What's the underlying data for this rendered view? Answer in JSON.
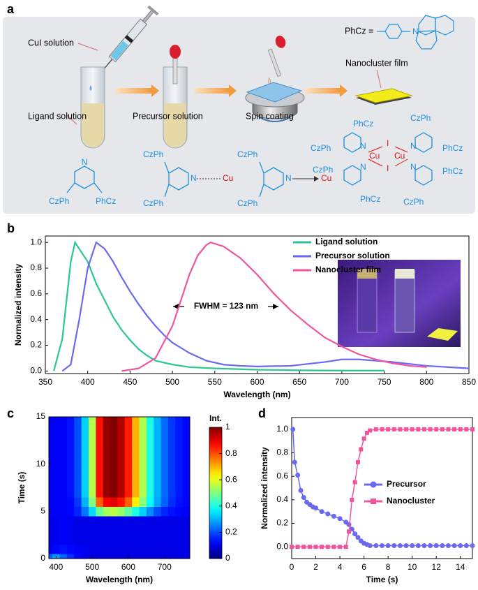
{
  "panel_a": {
    "label": "a",
    "captions": [
      "CuI solution",
      "Ligand solution",
      "Precursor solution",
      "Spin coating",
      "Nanocluster film"
    ],
    "phcz_label": "PhCz =",
    "phcz_n": "N",
    "ligand": [
      "N",
      "CzPh",
      "PhCz"
    ],
    "precursor": [
      "CzPh",
      "N",
      "Cu",
      "CzPh"
    ],
    "complex": [
      "CzPh",
      "N",
      "Cu",
      "CzPh"
    ],
    "cluster": [
      "PhCz",
      "CzPh",
      "N",
      "Cu",
      "I",
      "I",
      "Cu",
      "N",
      "CzPh",
      "PhCz",
      "CzPh",
      "N",
      "N",
      "PhCz",
      "PhCz",
      "CzPh"
    ]
  },
  "chart_data": [
    {
      "type": "line",
      "label": "b",
      "xlabel": "Wavelength (nm)",
      "ylabel": "Normalized intensity",
      "xlim": [
        350,
        850
      ],
      "xticks": [
        350,
        400,
        450,
        500,
        550,
        600,
        650,
        700,
        750,
        800,
        850
      ],
      "ylim": [
        -0.02,
        1.05
      ],
      "yticks": [
        {
          "value": 0,
          "label": "0.0"
        },
        {
          "value": 0.2,
          "label": "0.2"
        },
        {
          "value": 0.4,
          "label": "0.4"
        },
        {
          "value": 0.6,
          "label": "0.6"
        },
        {
          "value": 0.8,
          "label": "0.8"
        },
        {
          "value": 1,
          "label": "1.0"
        }
      ],
      "annotation": "FWHM = 123 nm",
      "legend": "upper right",
      "series": [
        {
          "name": "Ligand solution",
          "color": "#2ac78f",
          "x": [
            360,
            370,
            380,
            385,
            390,
            400,
            410,
            420,
            430,
            440,
            450,
            460,
            470,
            480,
            500,
            520,
            550,
            600,
            650,
            700,
            750
          ],
          "values": [
            0,
            0.25,
            0.85,
            1.0,
            0.95,
            0.85,
            0.68,
            0.55,
            0.42,
            0.32,
            0.24,
            0.17,
            0.12,
            0.08,
            0.05,
            0.03,
            0.02,
            0.01,
            0.005,
            0.003,
            0.003
          ]
        },
        {
          "name": "Precursor solution",
          "color": "#6a6af0",
          "x": [
            370,
            380,
            390,
            400,
            410,
            420,
            430,
            440,
            450,
            460,
            470,
            480,
            490,
            500,
            520,
            540,
            560,
            580,
            600,
            640,
            680,
            700,
            720,
            760,
            800,
            850
          ],
          "values": [
            0,
            0.05,
            0.4,
            0.8,
            1.0,
            0.95,
            0.85,
            0.73,
            0.62,
            0.52,
            0.43,
            0.35,
            0.28,
            0.22,
            0.14,
            0.08,
            0.05,
            0.04,
            0.035,
            0.04,
            0.07,
            0.09,
            0.09,
            0.07,
            0.04,
            0.02
          ]
        },
        {
          "name": "Nanocluster film",
          "color": "#f0559c",
          "x": [
            440,
            460,
            480,
            500,
            510,
            520,
            530,
            540,
            545,
            560,
            580,
            600,
            620,
            640,
            660,
            680,
            700,
            720,
            740,
            760,
            780,
            800
          ],
          "values": [
            0,
            0.02,
            0.1,
            0.35,
            0.55,
            0.75,
            0.9,
            0.98,
            1.0,
            0.97,
            0.88,
            0.75,
            0.6,
            0.47,
            0.36,
            0.26,
            0.19,
            0.13,
            0.09,
            0.06,
            0.04,
            0.03
          ]
        }
      ]
    },
    {
      "type": "heatmap",
      "label": "c",
      "xlabel": "Wavelength (nm)",
      "ylabel": "Time (s)",
      "xlim": [
        380,
        770
      ],
      "xticks": [
        400,
        500,
        600,
        700
      ],
      "ylim": [
        0,
        15
      ],
      "yticks": [
        0,
        5,
        10,
        15
      ],
      "colormap": "jet",
      "colorbar": {
        "title": "Int.",
        "lim": [
          0,
          1
        ],
        "ticks": [
          0,
          0.2,
          0.4,
          0.6,
          0.8,
          1
        ]
      },
      "x": [
        380,
        400,
        420,
        440,
        460,
        480,
        500,
        520,
        540,
        560,
        580,
        600,
        620,
        640,
        660,
        680,
        700,
        720,
        740,
        760
      ],
      "y": [
        0,
        1,
        2,
        3,
        4,
        5,
        6,
        7,
        8,
        9,
        10,
        11,
        12,
        13,
        14,
        15
      ],
      "z": [
        [
          0.22,
          0.28,
          0.22,
          0.17,
          0.13,
          0.11,
          0.1,
          0.1,
          0.1,
          0.1,
          0.1,
          0.1,
          0.1,
          0.1,
          0.1,
          0.1,
          0.1,
          0.1,
          0.1,
          0.1
        ],
        [
          0.11,
          0.13,
          0.14,
          0.13,
          0.12,
          0.11,
          0.1,
          0.1,
          0.1,
          0.1,
          0.1,
          0.1,
          0.1,
          0.1,
          0.1,
          0.1,
          0.1,
          0.1,
          0.1,
          0.1
        ],
        [
          0.1,
          0.11,
          0.12,
          0.11,
          0.1,
          0.1,
          0.1,
          0.1,
          0.1,
          0.1,
          0.1,
          0.1,
          0.1,
          0.1,
          0.1,
          0.1,
          0.1,
          0.1,
          0.1,
          0.1
        ],
        [
          0.1,
          0.11,
          0.12,
          0.11,
          0.1,
          0.1,
          0.1,
          0.1,
          0.1,
          0.1,
          0.1,
          0.1,
          0.1,
          0.1,
          0.1,
          0.1,
          0.1,
          0.1,
          0.1,
          0.1
        ],
        [
          0.1,
          0.11,
          0.12,
          0.11,
          0.1,
          0.1,
          0.1,
          0.1,
          0.1,
          0.1,
          0.1,
          0.1,
          0.1,
          0.1,
          0.1,
          0.1,
          0.1,
          0.1,
          0.1,
          0.1
        ],
        [
          0.12,
          0.12,
          0.12,
          0.13,
          0.16,
          0.24,
          0.34,
          0.48,
          0.54,
          0.56,
          0.52,
          0.47,
          0.4,
          0.33,
          0.26,
          0.2,
          0.16,
          0.14,
          0.13,
          0.12
        ],
        [
          0.12,
          0.12,
          0.12,
          0.13,
          0.18,
          0.3,
          0.5,
          0.78,
          0.88,
          0.9,
          0.86,
          0.78,
          0.64,
          0.51,
          0.38,
          0.29,
          0.22,
          0.17,
          0.14,
          0.13
        ],
        [
          0.12,
          0.12,
          0.12,
          0.14,
          0.2,
          0.33,
          0.55,
          0.86,
          0.98,
          1.0,
          0.95,
          0.85,
          0.7,
          0.55,
          0.4,
          0.3,
          0.23,
          0.18,
          0.15,
          0.13
        ],
        [
          0.12,
          0.12,
          0.12,
          0.14,
          0.2,
          0.33,
          0.55,
          0.86,
          0.98,
          1.0,
          0.95,
          0.85,
          0.7,
          0.55,
          0.4,
          0.3,
          0.23,
          0.18,
          0.15,
          0.13
        ],
        [
          0.12,
          0.12,
          0.12,
          0.14,
          0.2,
          0.33,
          0.55,
          0.86,
          0.98,
          1.0,
          0.95,
          0.85,
          0.7,
          0.55,
          0.4,
          0.3,
          0.23,
          0.18,
          0.15,
          0.13
        ],
        [
          0.12,
          0.12,
          0.12,
          0.14,
          0.2,
          0.33,
          0.55,
          0.86,
          0.98,
          1.0,
          0.95,
          0.85,
          0.7,
          0.55,
          0.4,
          0.3,
          0.23,
          0.18,
          0.15,
          0.13
        ],
        [
          0.12,
          0.12,
          0.12,
          0.14,
          0.2,
          0.33,
          0.55,
          0.86,
          0.98,
          1.0,
          0.95,
          0.85,
          0.7,
          0.55,
          0.4,
          0.3,
          0.23,
          0.18,
          0.15,
          0.13
        ],
        [
          0.12,
          0.12,
          0.12,
          0.14,
          0.2,
          0.33,
          0.55,
          0.86,
          0.98,
          1.0,
          0.95,
          0.85,
          0.7,
          0.55,
          0.4,
          0.3,
          0.23,
          0.18,
          0.15,
          0.13
        ],
        [
          0.12,
          0.12,
          0.12,
          0.14,
          0.2,
          0.33,
          0.55,
          0.86,
          0.98,
          1.0,
          0.95,
          0.85,
          0.7,
          0.55,
          0.4,
          0.3,
          0.23,
          0.18,
          0.15,
          0.13
        ],
        [
          0.12,
          0.12,
          0.12,
          0.14,
          0.2,
          0.33,
          0.55,
          0.86,
          0.98,
          1.0,
          0.95,
          0.85,
          0.7,
          0.55,
          0.4,
          0.3,
          0.23,
          0.18,
          0.15,
          0.13
        ],
        [
          0.12,
          0.12,
          0.12,
          0.14,
          0.2,
          0.33,
          0.55,
          0.86,
          0.98,
          1.0,
          0.95,
          0.85,
          0.7,
          0.55,
          0.4,
          0.3,
          0.23,
          0.18,
          0.15,
          0.13
        ]
      ]
    },
    {
      "type": "line",
      "label": "d",
      "xlabel": "Time (s)",
      "ylabel": "Normalized intensity",
      "xlim": [
        0,
        15
      ],
      "xticks": [
        0,
        2,
        4,
        6,
        8,
        10,
        12,
        14
      ],
      "ylim": [
        -0.1,
        1.1
      ],
      "yticks": [
        {
          "value": 0,
          "label": "0.0"
        },
        {
          "value": 0.2,
          "label": "0.2"
        },
        {
          "value": 0.4,
          "label": "0.4"
        },
        {
          "value": 0.6,
          "label": "0.6"
        },
        {
          "value": 0.8,
          "label": "0.8"
        },
        {
          "value": 1,
          "label": "1.0"
        }
      ],
      "legend": "center right",
      "series": [
        {
          "name": "Precursor",
          "color": "#6a6af0",
          "marker": "circle",
          "x": [
            0.1,
            0.25,
            0.5,
            0.75,
            1,
            1.25,
            1.5,
            1.75,
            2,
            2.5,
            3,
            3.5,
            4,
            4.5,
            4.75,
            5,
            5.25,
            5.5,
            5.75,
            6,
            6.25,
            6.5,
            7,
            7.5,
            8,
            8.5,
            9,
            9.5,
            10,
            10.5,
            11,
            11.5,
            12,
            12.5,
            13,
            13.5,
            14,
            14.5,
            15
          ],
          "values": [
            1.0,
            0.72,
            0.61,
            0.48,
            0.42,
            0.38,
            0.36,
            0.34,
            0.33,
            0.3,
            0.28,
            0.26,
            0.24,
            0.21,
            0.19,
            0.15,
            0.11,
            0.08,
            0.05,
            0.03,
            0.02,
            0.01,
            0.01,
            0.01,
            0.01,
            0.01,
            0.01,
            0.01,
            0.01,
            0.01,
            0.01,
            0.01,
            0.01,
            0.01,
            0.01,
            0.01,
            0.01,
            0.01,
            0.01
          ]
        },
        {
          "name": "Nanocluster",
          "color": "#f0559c",
          "marker": "square",
          "x": [
            0,
            0.5,
            1,
            1.5,
            2,
            2.5,
            3,
            3.5,
            4,
            4.5,
            4.75,
            5,
            5.25,
            5.5,
            5.75,
            6,
            6.25,
            6.5,
            7,
            7.5,
            8,
            8.5,
            9,
            9.5,
            10,
            10.5,
            11,
            11.5,
            12,
            12.5,
            13,
            13.5,
            14,
            14.5,
            15
          ],
          "values": [
            0,
            0,
            0,
            0,
            0,
            0,
            0,
            0,
            0,
            0,
            0.13,
            0.4,
            0.55,
            0.72,
            0.83,
            0.92,
            0.97,
            0.99,
            1.0,
            1.0,
            1.0,
            1.0,
            1.0,
            1.0,
            1.0,
            1.0,
            1.0,
            1.0,
            1.0,
            1.0,
            1.0,
            1.0,
            1.0,
            1.0,
            1.0
          ]
        }
      ]
    }
  ]
}
